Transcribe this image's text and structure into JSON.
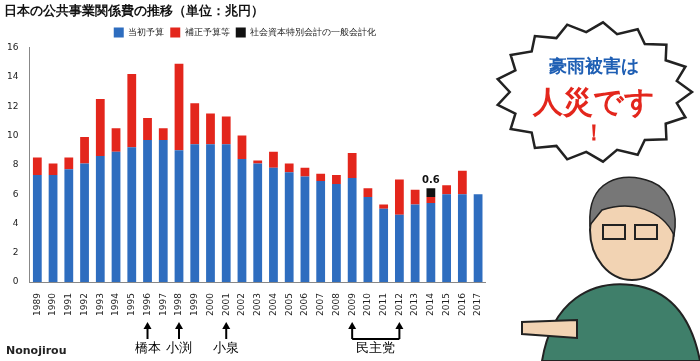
{
  "chart_data": {
    "type": "bar",
    "title": "日本の公共事業関係費の推移（単位：兆円）",
    "categories": [
      "1989",
      "1990",
      "1991",
      "1992",
      "1993",
      "1994",
      "1995",
      "1996",
      "1997",
      "1998",
      "1999",
      "2000",
      "2001",
      "2002",
      "2003",
      "2004",
      "2005",
      "2006",
      "2007",
      "2008",
      "2009",
      "2010",
      "2011",
      "2012",
      "2013",
      "2014",
      "2015",
      "2016",
      "2017"
    ],
    "series": [
      {
        "name": "当初予算",
        "color": "#2e6dbf",
        "values": [
          7.3,
          7.3,
          7.7,
          8.1,
          8.6,
          8.9,
          9.2,
          9.7,
          9.7,
          9.0,
          9.4,
          9.4,
          9.4,
          8.4,
          8.1,
          7.8,
          7.5,
          7.2,
          6.9,
          6.7,
          7.1,
          5.8,
          5.0,
          4.6,
          5.3,
          5.4,
          6.0,
          6.0,
          6.0
        ]
      },
      {
        "name": "補正予算等",
        "color": "#e3261c",
        "values": [
          1.2,
          0.8,
          0.8,
          1.8,
          3.9,
          1.6,
          5.0,
          1.5,
          0.8,
          5.9,
          2.8,
          2.1,
          1.9,
          1.6,
          0.2,
          1.1,
          0.6,
          0.6,
          0.5,
          0.6,
          1.7,
          0.6,
          0.3,
          2.4,
          1.0,
          0.4,
          0.6,
          1.6,
          null
        ]
      },
      {
        "name": "社会資本特別会計の一般会計化",
        "color": "#111111",
        "data_labels": true,
        "values": [
          null,
          null,
          null,
          null,
          null,
          null,
          null,
          null,
          null,
          null,
          null,
          null,
          null,
          null,
          null,
          null,
          null,
          null,
          null,
          null,
          null,
          null,
          null,
          null,
          null,
          0.6,
          null,
          null,
          null
        ]
      }
    ],
    "stacked": true,
    "ylim": [
      0,
      16
    ],
    "yticks": [
      0,
      2,
      4,
      6,
      8,
      10,
      12,
      14,
      16
    ],
    "grid": false,
    "legend": "top",
    "annotations": [
      {
        "text": "橋本",
        "x": "1996"
      },
      {
        "text": "小渕",
        "x": "1998"
      },
      {
        "text": "小泉",
        "x": "2001"
      },
      {
        "text": "民主党",
        "x_range": [
          "2009",
          "2012"
        ]
      }
    ]
  },
  "speech_bubble": {
    "lines": [
      "豪雨被害は",
      "人災です",
      "！"
    ]
  },
  "credit": "Nonojirou"
}
